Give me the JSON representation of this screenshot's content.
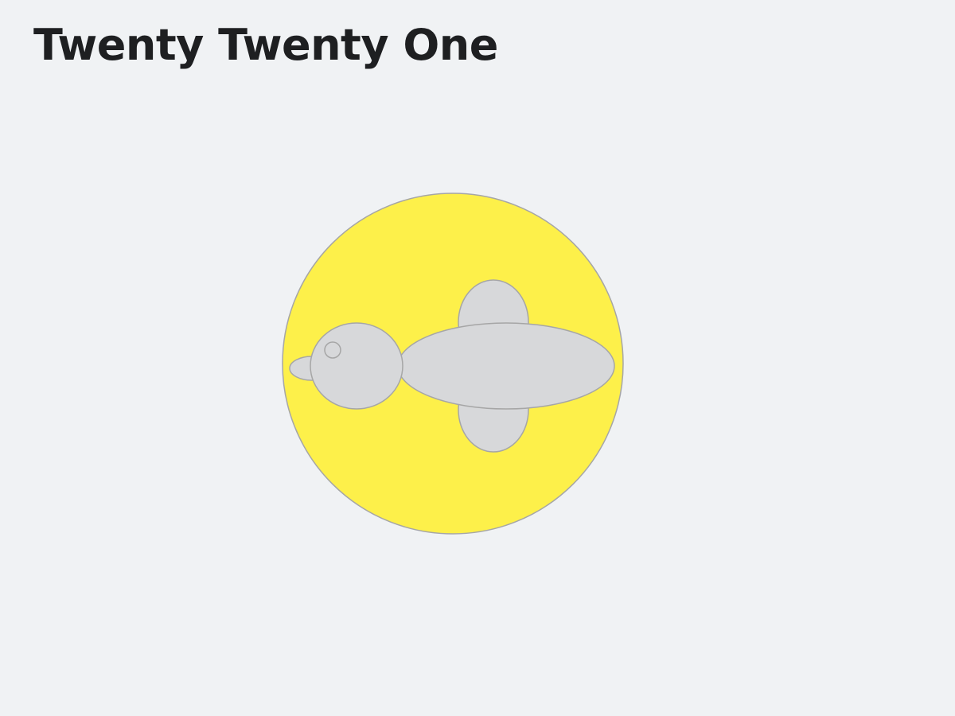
{
  "site": {
    "title": "Twenty Twenty One"
  },
  "illustration": {
    "subject-icon": "duck-in-circle-icon",
    "colors": {
      "background": "#f0f2f4",
      "circle_fill": "#fdf04a",
      "duck_fill": "#d7d8da",
      "outline": "#a6a6a6",
      "title_text": "#1e1f21"
    }
  }
}
